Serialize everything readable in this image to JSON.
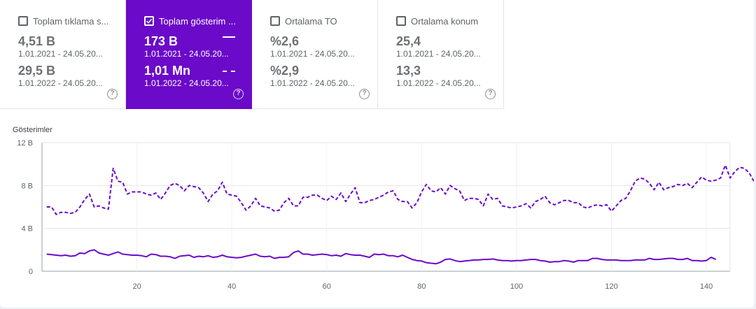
{
  "cards": [
    {
      "label": "Toplam tıklama s...",
      "value1": "4,51 B",
      "range1": "1.01.2021 - 24.05.20...",
      "value2": "29,5 B",
      "range2": "1.01.2022 - 24.05.20...",
      "checked": false
    },
    {
      "label": "Toplam gösterim ...",
      "value1": "173 B",
      "range1": "1.01.2021 - 24.05.20...",
      "value2": "1,01 Mn",
      "range2": "1.01.2022 - 24.05.20...",
      "checked": true
    },
    {
      "label": "Ortalama TO",
      "value1": "%2,6",
      "range1": "1.01.2021 - 24.05.20...",
      "value2": "%2,9",
      "range2": "1.01.2022 - 24.05.20...",
      "checked": false
    },
    {
      "label": "Ortalama konum",
      "value1": "25,4",
      "range1": "1.01.2021 - 24.05.20...",
      "value2": "13,3",
      "range2": "1.01.2022 - 24.05.20...",
      "checked": false
    }
  ],
  "help_glyph": "?",
  "check_glyph": "✓",
  "colors": {
    "accent": "#6b0ac9",
    "series": "#6b0ac9"
  },
  "chart_data": {
    "type": "line",
    "ylabel": "Gösterimler",
    "ylim": [
      0,
      12
    ],
    "xlim": [
      0,
      145
    ],
    "y_ticks": [
      0,
      4,
      8,
      12
    ],
    "y_tick_labels": [
      "0",
      "4 B",
      "8 B",
      "12 B"
    ],
    "x_ticks": [
      20,
      40,
      60,
      80,
      100,
      120,
      140
    ],
    "x_tick_labels": [
      "20",
      "40",
      "60",
      "80",
      "100",
      "120",
      "140"
    ],
    "grid": true,
    "series": [
      {
        "style": "solid",
        "x_start": 1,
        "values": [
          1.6,
          1.55,
          1.5,
          1.45,
          1.5,
          1.4,
          1.45,
          1.7,
          1.65,
          1.9,
          2.0,
          1.7,
          1.6,
          1.5,
          1.65,
          1.8,
          1.6,
          1.55,
          1.5,
          1.5,
          1.45,
          1.35,
          1.6,
          1.55,
          1.4,
          1.4,
          1.35,
          1.2,
          1.4,
          1.45,
          1.5,
          1.3,
          1.4,
          1.35,
          1.45,
          1.3,
          1.35,
          1.5,
          1.35,
          1.3,
          1.25,
          1.3,
          1.4,
          1.5,
          1.6,
          1.4,
          1.35,
          1.4,
          1.2,
          1.3,
          1.3,
          1.35,
          1.75,
          1.9,
          1.6,
          1.6,
          1.5,
          1.55,
          1.6,
          1.55,
          1.45,
          1.5,
          1.4,
          1.65,
          1.55,
          1.5,
          1.5,
          1.4,
          1.3,
          1.6,
          1.55,
          1.6,
          1.45,
          1.45,
          1.35,
          1.5,
          1.3,
          1.1,
          1.0,
          0.95,
          0.8,
          0.75,
          0.7,
          0.85,
          1.1,
          1.15,
          1.0,
          0.9,
          0.95,
          1.0,
          1.05,
          1.05,
          1.1,
          1.1,
          1.15,
          1.05,
          1.0,
          1.0,
          0.95,
          1.0,
          1.0,
          1.05,
          1.1,
          1.1,
          1.0,
          0.95,
          0.85,
          0.9,
          0.9,
          1.0,
          0.95,
          0.85,
          1.0,
          1.0,
          1.0,
          1.2,
          1.2,
          1.1,
          1.05,
          1.05,
          1.05,
          1.0,
          1.0,
          1.0,
          1.05,
          1.05,
          1.05,
          1.2,
          1.1,
          1.1,
          1.15,
          1.2,
          1.2,
          1.1,
          1.1,
          1.2,
          1.0,
          1.0,
          0.95,
          1.0,
          1.3,
          1.1
        ]
      },
      {
        "style": "dashed",
        "x_start": 1,
        "values": [
          6.0,
          6.0,
          5.3,
          5.5,
          5.5,
          5.4,
          5.5,
          6.0,
          6.7,
          7.2,
          6.0,
          6.1,
          5.9,
          5.8,
          9.6,
          8.4,
          8.3,
          7.2,
          7.4,
          7.4,
          7.4,
          7.2,
          7.1,
          7.3,
          6.7,
          7.3,
          8.0,
          8.2,
          8.0,
          7.5,
          8.0,
          7.9,
          7.8,
          7.3,
          6.5,
          7.2,
          7.5,
          8.3,
          7.2,
          7.1,
          7.0,
          6.4,
          5.7,
          6.1,
          6.8,
          6.1,
          6.0,
          5.9,
          5.6,
          5.7,
          6.4,
          6.8,
          6.1,
          6.1,
          6.9,
          6.9,
          7.1,
          7.1,
          6.8,
          6.6,
          7.0,
          6.7,
          7.3,
          6.5,
          7.2,
          7.8,
          6.4,
          6.4,
          6.6,
          6.7,
          6.9,
          7.1,
          7.4,
          7.5,
          6.7,
          6.5,
          6.5,
          5.9,
          6.4,
          7.4,
          8.1,
          7.5,
          7.4,
          7.8,
          7.2,
          8.0,
          7.7,
          7.5,
          6.6,
          6.8,
          6.8,
          6.7,
          6.1,
          7.2,
          6.7,
          6.8,
          6.1,
          6.0,
          5.9,
          6.0,
          6.1,
          6.3,
          5.9,
          6.5,
          6.7,
          7.0,
          6.4,
          6.2,
          6.4,
          6.6,
          6.6,
          6.4,
          6.4,
          6.0,
          5.9,
          6.1,
          6.2,
          6.1,
          6.2,
          5.6,
          6.1,
          6.6,
          6.8,
          7.5,
          8.4,
          8.7,
          8.6,
          8.2,
          7.6,
          8.3,
          7.6,
          7.8,
          7.9,
          8.1,
          8.0,
          8.2,
          7.8,
          8.3,
          8.8,
          8.5,
          8.4,
          8.5,
          8.7,
          9.9,
          8.7,
          9.3,
          9.7,
          9.6,
          9.2,
          8.4
        ]
      }
    ]
  }
}
